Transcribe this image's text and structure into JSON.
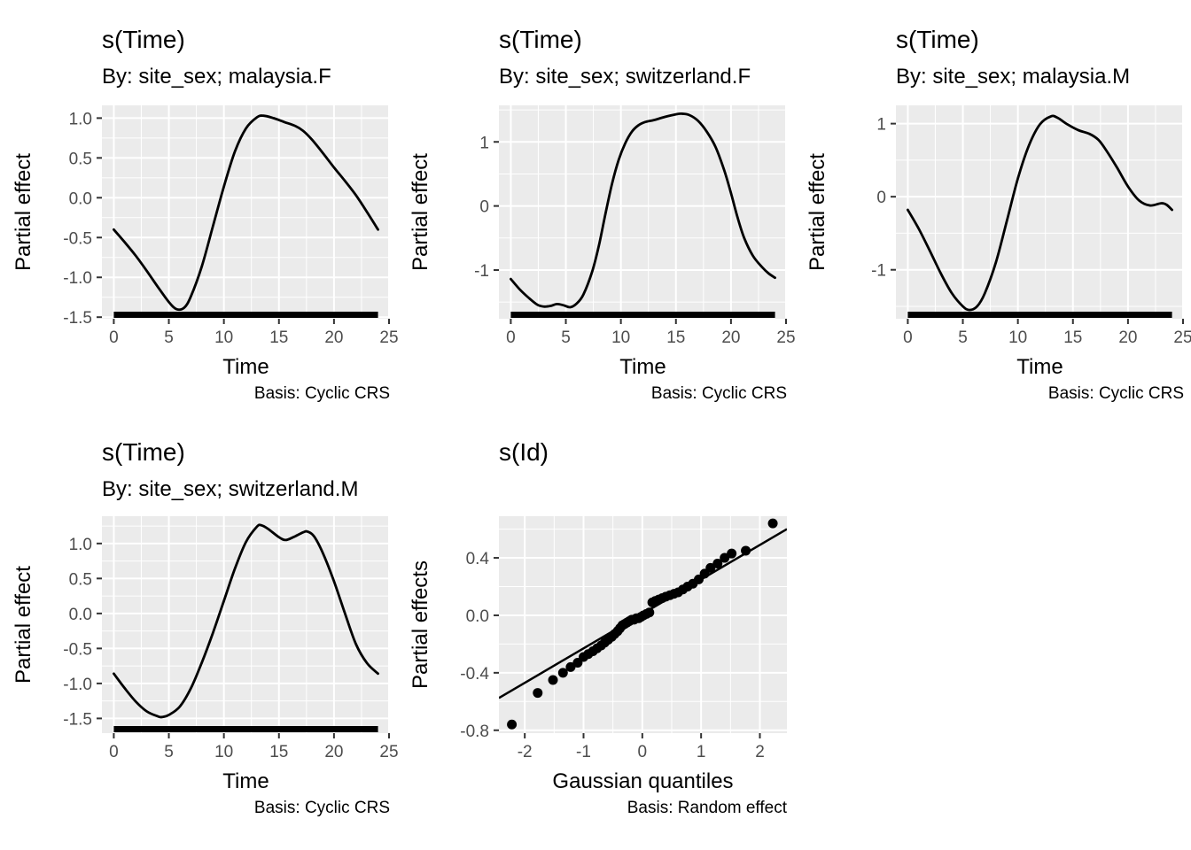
{
  "style": {
    "page_background": "#FFFFFF",
    "panel_background": "#EBEBEB",
    "grid_color": "#FFFFFF",
    "curve_color": "#000000",
    "point_color": "#000000",
    "rug_color": "#000000",
    "tick_mark_color": "#333333",
    "axis_text_color": "#4D4D4D",
    "title_text_color": "#000000"
  },
  "chart_data": [
    {
      "type": "line",
      "title": "s(Time)",
      "subtitle": "By: site_sex; malaysia.F",
      "xlab": "Time",
      "ylab": "Partial effect",
      "caption": "Basis: Cyclic CRS",
      "grid": true,
      "xlim": [
        -1.08,
        25.08
      ],
      "ylim": [
        -1.52,
        1.16
      ],
      "x_ticks": [
        0,
        5,
        10,
        15,
        20,
        25
      ],
      "x_tick_labels": [
        "0",
        "5",
        "10",
        "15",
        "20",
        "25"
      ],
      "x_minor": [
        2.5,
        7.5,
        12.5,
        17.5,
        22.5
      ],
      "y_ticks": [
        -1.5,
        -1.0,
        -0.5,
        0.0,
        0.5,
        1.0
      ],
      "y_tick_labels": [
        "-1.5",
        "-1.0",
        "-0.5",
        "0.0",
        "0.5",
        "1.0"
      ],
      "y_minor": [
        -1.25,
        -0.75,
        -0.25,
        0.25,
        0.75
      ],
      "rug": {
        "x_from": 0,
        "x_to": 24
      },
      "line": [
        [
          0,
          -0.4
        ],
        [
          1,
          -0.56
        ],
        [
          2,
          -0.73
        ],
        [
          3,
          -0.92
        ],
        [
          4,
          -1.12
        ],
        [
          5,
          -1.31
        ],
        [
          5.7,
          -1.4
        ],
        [
          6.4,
          -1.38
        ],
        [
          7,
          -1.24
        ],
        [
          8,
          -0.86
        ],
        [
          9,
          -0.36
        ],
        [
          10,
          0.14
        ],
        [
          11,
          0.58
        ],
        [
          12,
          0.87
        ],
        [
          13,
          1.01
        ],
        [
          13.6,
          1.03
        ],
        [
          14.5,
          1.0
        ],
        [
          15.5,
          0.95
        ],
        [
          16.5,
          0.9
        ],
        [
          17.2,
          0.84
        ],
        [
          18,
          0.73
        ],
        [
          19,
          0.56
        ],
        [
          20,
          0.38
        ],
        [
          21,
          0.21
        ],
        [
          22,
          0.03
        ],
        [
          23,
          -0.18
        ],
        [
          24,
          -0.4
        ]
      ]
    },
    {
      "type": "line",
      "title": "s(Time)",
      "subtitle": "By: site_sex; switzerland.F",
      "xlab": "Time",
      "ylab": "Partial effect",
      "caption": "Basis: Cyclic CRS",
      "grid": true,
      "xlim": [
        -1.08,
        25.08
      ],
      "ylim": [
        -1.76,
        1.57
      ],
      "x_ticks": [
        0,
        5,
        10,
        15,
        20,
        25
      ],
      "x_tick_labels": [
        "0",
        "5",
        "10",
        "15",
        "20",
        "25"
      ],
      "x_minor": [
        2.5,
        7.5,
        12.5,
        17.5,
        22.5
      ],
      "y_ticks": [
        -1,
        0,
        1
      ],
      "y_tick_labels": [
        "-1",
        "0",
        "1"
      ],
      "y_minor": [
        -1.5,
        -0.5,
        0.5,
        1.5
      ],
      "rug": {
        "x_from": 0,
        "x_to": 24
      },
      "line": [
        [
          0,
          -1.14
        ],
        [
          0.8,
          -1.3
        ],
        [
          1.6,
          -1.43
        ],
        [
          2.4,
          -1.54
        ],
        [
          3,
          -1.57
        ],
        [
          3.6,
          -1.56
        ],
        [
          4.2,
          -1.53
        ],
        [
          4.8,
          -1.55
        ],
        [
          5.4,
          -1.58
        ],
        [
          6,
          -1.52
        ],
        [
          6.6,
          -1.38
        ],
        [
          7.4,
          -1.02
        ],
        [
          8,
          -0.62
        ],
        [
          8.6,
          -0.12
        ],
        [
          9.2,
          0.35
        ],
        [
          9.8,
          0.72
        ],
        [
          10.4,
          0.98
        ],
        [
          11,
          1.16
        ],
        [
          11.6,
          1.26
        ],
        [
          12.2,
          1.31
        ],
        [
          13,
          1.34
        ],
        [
          14,
          1.39
        ],
        [
          15,
          1.43
        ],
        [
          15.5,
          1.44
        ],
        [
          16.2,
          1.42
        ],
        [
          17,
          1.33
        ],
        [
          17.8,
          1.16
        ],
        [
          18.6,
          0.92
        ],
        [
          19.4,
          0.55
        ],
        [
          20,
          0.2
        ],
        [
          20.6,
          -0.18
        ],
        [
          21.2,
          -0.5
        ],
        [
          22,
          -0.78
        ],
        [
          22.8,
          -0.95
        ],
        [
          23.4,
          -1.05
        ],
        [
          24,
          -1.12
        ]
      ]
    },
    {
      "type": "line",
      "title": "s(Time)",
      "subtitle": "By: site_sex; malaysia.M",
      "xlab": "Time",
      "ylab": "Partial effect",
      "caption": "Basis: Cyclic CRS",
      "grid": true,
      "xlim": [
        -1.08,
        25.08
      ],
      "ylim": [
        -1.67,
        1.25
      ],
      "x_ticks": [
        0,
        5,
        10,
        15,
        20,
        25
      ],
      "x_tick_labels": [
        "0",
        "5",
        "10",
        "15",
        "20",
        "25"
      ],
      "x_minor": [
        2.5,
        7.5,
        12.5,
        17.5,
        22.5
      ],
      "y_ticks": [
        -1,
        0,
        1
      ],
      "y_tick_labels": [
        "-1",
        "0",
        "1"
      ],
      "y_minor": [
        -1.5,
        -0.5,
        0.5
      ],
      "rug": {
        "x_from": 0,
        "x_to": 24
      },
      "line": [
        [
          0,
          -0.18
        ],
        [
          1,
          -0.44
        ],
        [
          2,
          -0.74
        ],
        [
          3,
          -1.05
        ],
        [
          4,
          -1.32
        ],
        [
          5,
          -1.5
        ],
        [
          5.6,
          -1.55
        ],
        [
          6.3,
          -1.5
        ],
        [
          7,
          -1.32
        ],
        [
          8,
          -0.9
        ],
        [
          9,
          -0.33
        ],
        [
          10,
          0.25
        ],
        [
          11,
          0.7
        ],
        [
          12,
          0.99
        ],
        [
          13,
          1.1
        ],
        [
          13.6,
          1.08
        ],
        [
          14.5,
          0.99
        ],
        [
          15.5,
          0.91
        ],
        [
          16.5,
          0.86
        ],
        [
          17.3,
          0.78
        ],
        [
          18,
          0.64
        ],
        [
          19,
          0.4
        ],
        [
          20,
          0.14
        ],
        [
          21,
          -0.05
        ],
        [
          22,
          -0.12
        ],
        [
          23,
          -0.09
        ],
        [
          23.5,
          -0.11
        ],
        [
          24,
          -0.18
        ]
      ]
    },
    {
      "type": "line",
      "title": "s(Time)",
      "subtitle": "By: site_sex; switzerland.M",
      "xlab": "Time",
      "ylab": "Partial effect",
      "caption": "Basis: Cyclic CRS",
      "grid": true,
      "xlim": [
        -1.08,
        25.08
      ],
      "ylim": [
        -1.71,
        1.39
      ],
      "x_ticks": [
        0,
        5,
        10,
        15,
        20,
        25
      ],
      "x_tick_labels": [
        "0",
        "5",
        "10",
        "15",
        "20",
        "25"
      ],
      "x_minor": [
        2.5,
        7.5,
        12.5,
        17.5,
        22.5
      ],
      "y_ticks": [
        -1.5,
        -1.0,
        -0.5,
        0.0,
        0.5,
        1.0
      ],
      "y_tick_labels": [
        "-1.5",
        "-1.0",
        "-0.5",
        "0.0",
        "0.5",
        "1.0"
      ],
      "y_minor": [
        -1.25,
        -0.75,
        -0.25,
        0.25,
        0.75,
        1.25
      ],
      "rug": {
        "x_from": 0,
        "x_to": 24
      },
      "line": [
        [
          0,
          -0.86
        ],
        [
          1,
          -1.07
        ],
        [
          2,
          -1.26
        ],
        [
          3,
          -1.4
        ],
        [
          4,
          -1.47
        ],
        [
          4.4,
          -1.48
        ],
        [
          5,
          -1.45
        ],
        [
          6,
          -1.33
        ],
        [
          7,
          -1.07
        ],
        [
          8,
          -0.7
        ],
        [
          9,
          -0.28
        ],
        [
          10,
          0.18
        ],
        [
          11,
          0.64
        ],
        [
          12,
          1.02
        ],
        [
          13,
          1.24
        ],
        [
          13.4,
          1.26
        ],
        [
          14,
          1.21
        ],
        [
          15,
          1.09
        ],
        [
          15.6,
          1.05
        ],
        [
          16.3,
          1.09
        ],
        [
          17.2,
          1.16
        ],
        [
          17.6,
          1.17
        ],
        [
          18.2,
          1.1
        ],
        [
          19,
          0.86
        ],
        [
          20,
          0.46
        ],
        [
          21,
          0.0
        ],
        [
          22,
          -0.44
        ],
        [
          23,
          -0.71
        ],
        [
          24,
          -0.86
        ]
      ]
    },
    {
      "type": "scatter",
      "title": "s(Id)",
      "subtitle": null,
      "xlab": "Gaussian quantiles",
      "ylab": "Partial effects",
      "caption": "Basis: Random effect",
      "grid": true,
      "xlim": [
        -2.44,
        2.46
      ],
      "ylim": [
        -0.82,
        0.69
      ],
      "x_ticks": [
        -2,
        -1,
        0,
        1,
        2
      ],
      "x_tick_labels": [
        "-2",
        "-1",
        "0",
        "1",
        "2"
      ],
      "x_minor": [
        -1.5,
        -0.5,
        0.5,
        1.5
      ],
      "y_ticks": [
        -0.8,
        -0.4,
        0.0,
        0.4
      ],
      "y_tick_labels": [
        "-0.8",
        "-0.4",
        "0.0",
        "0.4"
      ],
      "y_minor": [
        -0.6,
        -0.2,
        0.2,
        0.6
      ],
      "refline": {
        "slope": 0.24,
        "intercept": 0.01
      },
      "points": [
        [
          -2.22,
          -0.76
        ],
        [
          -1.78,
          -0.54
        ],
        [
          -1.52,
          -0.45
        ],
        [
          -1.35,
          -0.4
        ],
        [
          -1.22,
          -0.36
        ],
        [
          -1.1,
          -0.33
        ],
        [
          -1.0,
          -0.29
        ],
        [
          -0.92,
          -0.27
        ],
        [
          -0.84,
          -0.25
        ],
        [
          -0.77,
          -0.23
        ],
        [
          -0.7,
          -0.21
        ],
        [
          -0.64,
          -0.19
        ],
        [
          -0.58,
          -0.17
        ],
        [
          -0.52,
          -0.15
        ],
        [
          -0.47,
          -0.13
        ],
        [
          -0.42,
          -0.11
        ],
        [
          -0.38,
          -0.09
        ],
        [
          -0.34,
          -0.07
        ],
        [
          -0.3,
          -0.06
        ],
        [
          -0.26,
          -0.05
        ],
        [
          -0.22,
          -0.04
        ],
        [
          -0.18,
          -0.03
        ],
        [
          -0.14,
          -0.03
        ],
        [
          -0.1,
          -0.02
        ],
        [
          -0.06,
          -0.02
        ],
        [
          -0.02,
          -0.01
        ],
        [
          0.02,
          0.0
        ],
        [
          0.07,
          0.01
        ],
        [
          0.12,
          0.02
        ],
        [
          0.17,
          0.09
        ],
        [
          0.22,
          0.1
        ],
        [
          0.28,
          0.11
        ],
        [
          0.34,
          0.12
        ],
        [
          0.4,
          0.13
        ],
        [
          0.47,
          0.14
        ],
        [
          0.54,
          0.15
        ],
        [
          0.61,
          0.16
        ],
        [
          0.69,
          0.18
        ],
        [
          0.77,
          0.2
        ],
        [
          0.86,
          0.22
        ],
        [
          0.96,
          0.25
        ],
        [
          1.06,
          0.29
        ],
        [
          1.16,
          0.33
        ],
        [
          1.28,
          0.36
        ],
        [
          1.4,
          0.4
        ],
        [
          1.52,
          0.43
        ],
        [
          1.76,
          0.45
        ],
        [
          2.22,
          0.64
        ]
      ]
    }
  ]
}
